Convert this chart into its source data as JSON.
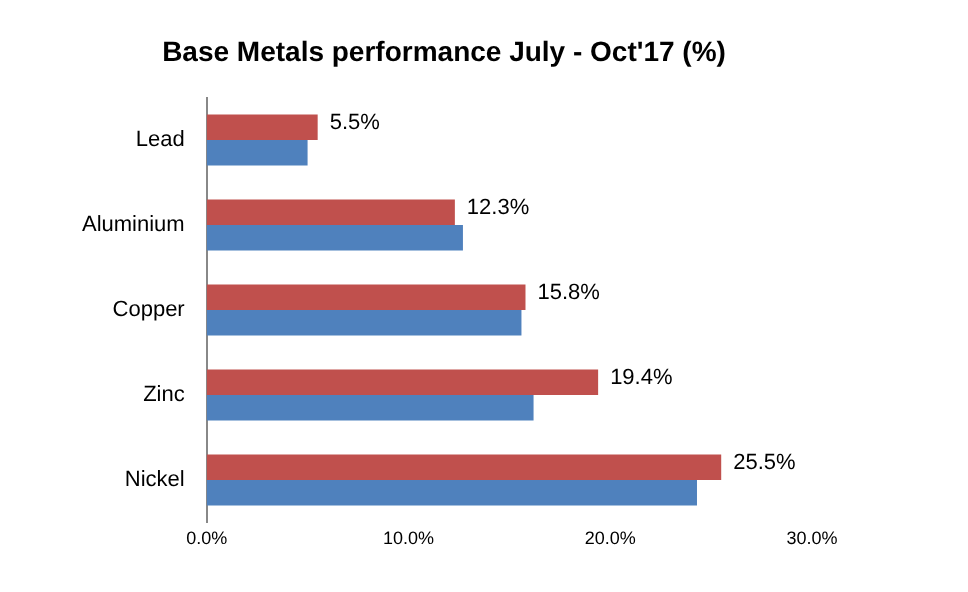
{
  "chart_data": {
    "type": "bar",
    "orientation": "horizontal",
    "title": "Base Metals performance July - Oct'17 (%)",
    "categories": [
      "Lead",
      "Aluminium",
      "Copper",
      "Zinc",
      "Nickel"
    ],
    "series": [
      {
        "color": "#c0504d",
        "values": [
          5.5,
          12.3,
          15.8,
          19.4,
          25.5
        ],
        "value_labels": [
          "5.5%",
          "12.3%",
          "15.8%",
          "19.4%",
          "25.5%"
        ]
      },
      {
        "color": "#4f81bd",
        "values": [
          5.0,
          12.7,
          15.6,
          16.2,
          24.3
        ]
      }
    ],
    "xlim": [
      0,
      30
    ],
    "xticks": [
      {
        "value": 0,
        "label": "0.0%"
      },
      {
        "value": 10,
        "label": "10.0%"
      },
      {
        "value": 20,
        "label": "20.0%"
      },
      {
        "value": 30,
        "label": "30.0%"
      }
    ],
    "grid": false,
    "legend": false
  }
}
